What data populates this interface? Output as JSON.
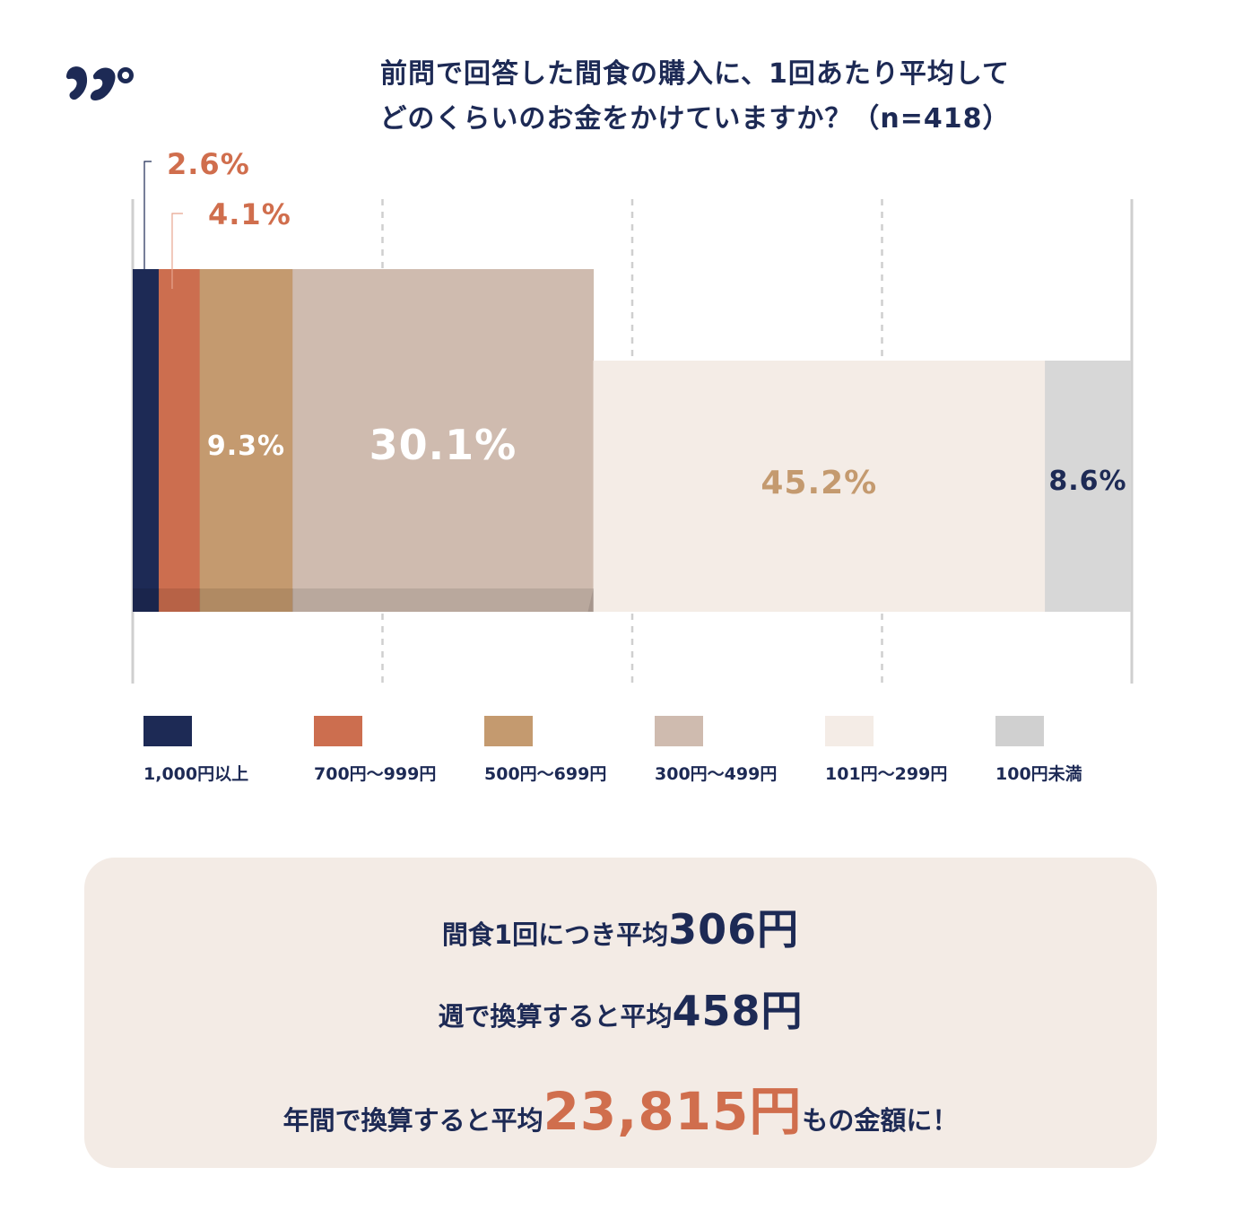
{
  "logo": {
    "icon": "brand-logo-icon",
    "color": "#1d2a55"
  },
  "title": {
    "line1": "前問で回答した間食の購入に、1回あたり平均して",
    "line2": "どのくらいのお金をかけていますか？（n=418）"
  },
  "chart_data": {
    "type": "bar",
    "orientation": "horizontal-stacked",
    "title": "前問で回答した間食の購入に、1回あたり平均してどのくらいのお金をかけていますか？（n=418）",
    "n": 418,
    "xlim": [
      0,
      100
    ],
    "grid": true,
    "legend_position": "bottom",
    "series": [
      {
        "name": "1,000円以上",
        "value": 2.6,
        "label": "2.6%",
        "color": "#1d2a55",
        "label_color": "#d06e4d"
      },
      {
        "name": "700円～999円",
        "value": 4.1,
        "label": "4.1%",
        "color": "#cc6e4f",
        "label_color": "#d06e4d"
      },
      {
        "name": "500円～699円",
        "value": 9.3,
        "label": "9.3%",
        "color": "#c49a6f",
        "label_color": "#ffffff"
      },
      {
        "name": "300円～499円",
        "value": 30.1,
        "label": "30.1%",
        "color": "#cfbbaf",
        "label_color": "#ffffff"
      },
      {
        "name": "101円～299円",
        "value": 45.2,
        "label": "45.2%",
        "color": "#f4ece6",
        "label_color": "#c49a6f"
      },
      {
        "name": "100円未満",
        "value": 8.6,
        "label": "8.6%",
        "color": "#d7d7d7",
        "label_color": "#1d2a55"
      }
    ]
  },
  "legend": [
    {
      "label": "1,000円以上",
      "color": "#1d2a55"
    },
    {
      "label": "700円～999円",
      "color": "#cc6e4f"
    },
    {
      "label": "500円～699円",
      "color": "#c49a6f"
    },
    {
      "label": "300円～499円",
      "color": "#cfbbaf"
    },
    {
      "label": "101円～299円",
      "color": "#f4ece6"
    },
    {
      "label": "100円未満",
      "color": "#d0d0d0"
    }
  ],
  "summary": {
    "line1_prefix": "間食1回につき平均",
    "line1_value": "306円",
    "line2_prefix": "週で換算すると平均",
    "line2_value": "458円",
    "line3_prefix": "年間で換算すると平均",
    "line3_value": "23,815円",
    "line3_suffix": "もの金額に！",
    "accent_color": "#d06e4d",
    "background": "#f3ebe5"
  }
}
